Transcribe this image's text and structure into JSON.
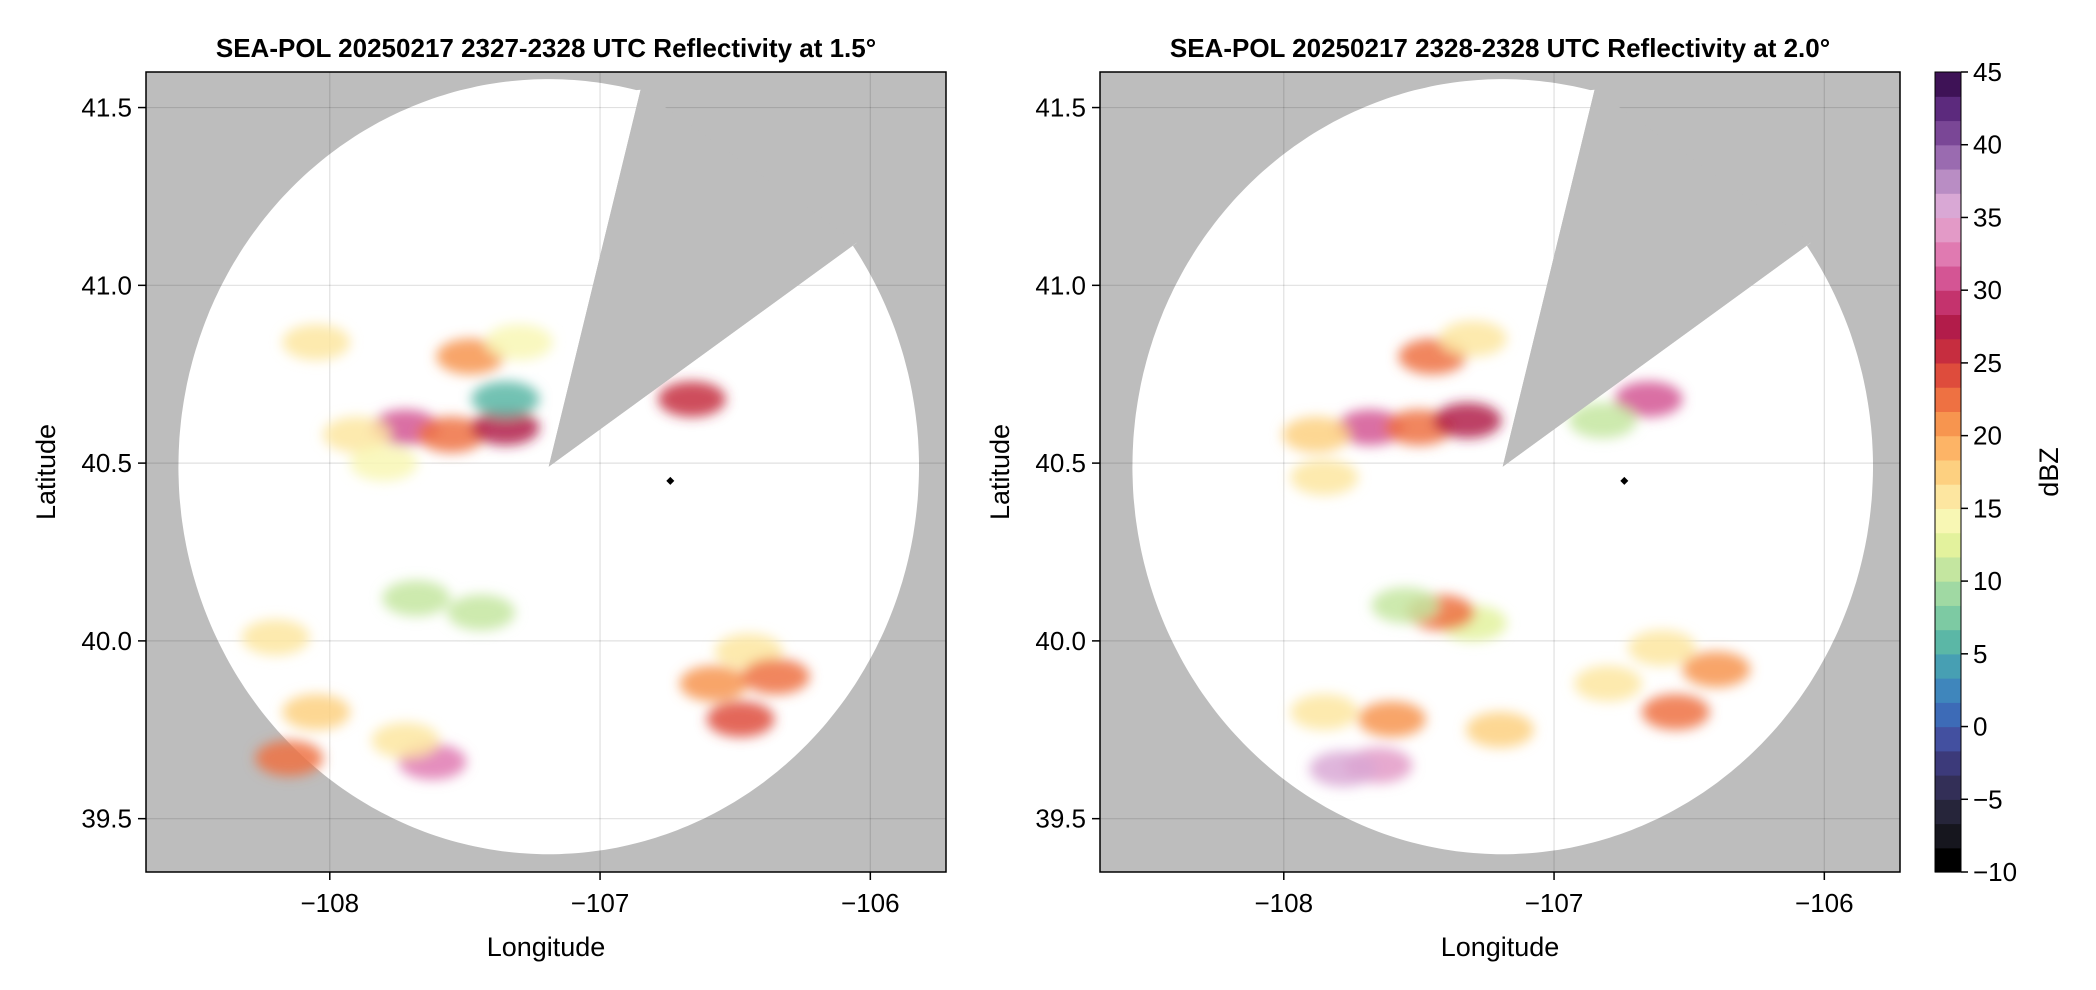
{
  "chart_data": [
    {
      "type": "heatmap",
      "title": "SEA-POL 20250217 2327-2328 UTC Reflectivity at 1.5°",
      "xlabel": "Longitude",
      "ylabel": "Latitude",
      "xlim": [
        -108.68,
        -105.72
      ],
      "ylim": [
        39.35,
        41.6
      ],
      "xticks": [
        -108,
        -107,
        -106
      ],
      "xtick_labels": [
        "−108",
        "−107",
        "−106"
      ],
      "yticks": [
        39.5,
        40.0,
        40.5,
        41.0,
        41.5
      ],
      "ytick_labels": [
        "39.5",
        "40.0",
        "40.5",
        "41.0",
        "41.5"
      ],
      "grid": true,
      "background": "#bdbdbd",
      "radar_site": {
        "lon": -107.19,
        "lat": 40.49
      },
      "marker": {
        "lon": -106.74,
        "lat": 40.45
      },
      "coverage_corners": [
        [
          -105.82,
          40.47
        ],
        [
          -107.19,
          39.38
        ],
        [
          -108.56,
          40.47
        ],
        [
          -107.19,
          41.56
        ],
        [
          -106.85,
          41.55
        ],
        [
          -106.05,
          41.12
        ]
      ],
      "blocked_sector": {
        "from_lon_lat": [
          -106.85,
          41.55
        ],
        "to_lon_lat": [
          -106.05,
          41.12
        ]
      },
      "echoes": [
        {
          "lon": -107.72,
          "lat": 40.6,
          "dbz": 30
        },
        {
          "lon": -107.9,
          "lat": 40.58,
          "dbz": 16
        },
        {
          "lon": -107.55,
          "lat": 40.58,
          "dbz": 22
        },
        {
          "lon": -107.35,
          "lat": 40.6,
          "dbz": 27
        },
        {
          "lon": -107.48,
          "lat": 40.8,
          "dbz": 20
        },
        {
          "lon": -107.3,
          "lat": 40.84,
          "dbz": 14
        },
        {
          "lon": -107.35,
          "lat": 40.68,
          "dbz": 6
        },
        {
          "lon": -106.66,
          "lat": 40.68,
          "dbz": 25
        },
        {
          "lon": -107.8,
          "lat": 40.5,
          "dbz": 14
        },
        {
          "lon": -108.05,
          "lat": 40.84,
          "dbz": 15
        },
        {
          "lon": -106.45,
          "lat": 39.97,
          "dbz": 15
        },
        {
          "lon": -106.58,
          "lat": 39.88,
          "dbz": 20
        },
        {
          "lon": -106.35,
          "lat": 39.9,
          "dbz": 22
        },
        {
          "lon": -106.48,
          "lat": 39.78,
          "dbz": 24
        },
        {
          "lon": -107.68,
          "lat": 40.12,
          "dbz": 10
        },
        {
          "lon": -107.44,
          "lat": 40.08,
          "dbz": 11
        },
        {
          "lon": -108.2,
          "lat": 40.01,
          "dbz": 16
        },
        {
          "lon": -108.05,
          "lat": 39.8,
          "dbz": 17
        },
        {
          "lon": -107.62,
          "lat": 39.66,
          "dbz": 32
        },
        {
          "lon": -107.72,
          "lat": 39.72,
          "dbz": 16
        },
        {
          "lon": -108.15,
          "lat": 39.67,
          "dbz": 22
        }
      ]
    },
    {
      "type": "heatmap",
      "title": "SEA-POL 20250217 2328-2328 UTC Reflectivity at 2.0°",
      "xlabel": "Longitude",
      "ylabel": "Latitude",
      "xlim": [
        -108.68,
        -105.72
      ],
      "ylim": [
        39.35,
        41.6
      ],
      "xticks": [
        -108,
        -107,
        -106
      ],
      "xtick_labels": [
        "−108",
        "−107",
        "−106"
      ],
      "yticks": [
        39.5,
        40.0,
        40.5,
        41.0,
        41.5
      ],
      "ytick_labels": [
        "39.5",
        "40.0",
        "40.5",
        "41.0",
        "41.5"
      ],
      "grid": true,
      "background": "#bdbdbd",
      "radar_site": {
        "lon": -107.19,
        "lat": 40.49
      },
      "marker": {
        "lon": -106.74,
        "lat": 40.45
      },
      "coverage_corners": [
        [
          -105.82,
          40.47
        ],
        [
          -107.19,
          39.38
        ],
        [
          -108.56,
          40.47
        ],
        [
          -107.19,
          41.56
        ],
        [
          -106.85,
          41.55
        ],
        [
          -106.05,
          41.12
        ]
      ],
      "blocked_sector": {
        "from_lon_lat": [
          -106.85,
          41.55
        ],
        "to_lon_lat": [
          -106.05,
          41.12
        ]
      },
      "echoes": [
        {
          "lon": -107.68,
          "lat": 40.6,
          "dbz": 30
        },
        {
          "lon": -107.88,
          "lat": 40.58,
          "dbz": 17
        },
        {
          "lon": -107.5,
          "lat": 40.6,
          "dbz": 22
        },
        {
          "lon": -107.32,
          "lat": 40.62,
          "dbz": 27
        },
        {
          "lon": -107.45,
          "lat": 40.8,
          "dbz": 22
        },
        {
          "lon": -107.3,
          "lat": 40.85,
          "dbz": 15
        },
        {
          "lon": -106.65,
          "lat": 40.68,
          "dbz": 30
        },
        {
          "lon": -106.82,
          "lat": 40.62,
          "dbz": 10
        },
        {
          "lon": -107.85,
          "lat": 40.46,
          "dbz": 15
        },
        {
          "lon": -106.6,
          "lat": 39.98,
          "dbz": 16
        },
        {
          "lon": -106.4,
          "lat": 39.92,
          "dbz": 20
        },
        {
          "lon": -106.55,
          "lat": 39.8,
          "dbz": 22
        },
        {
          "lon": -106.8,
          "lat": 39.88,
          "dbz": 16
        },
        {
          "lon": -107.3,
          "lat": 40.05,
          "dbz": 12
        },
        {
          "lon": -107.42,
          "lat": 40.08,
          "dbz": 22
        },
        {
          "lon": -107.55,
          "lat": 40.1,
          "dbz": 11
        },
        {
          "lon": -107.6,
          "lat": 39.78,
          "dbz": 21
        },
        {
          "lon": -107.85,
          "lat": 39.8,
          "dbz": 16
        },
        {
          "lon": -107.2,
          "lat": 39.75,
          "dbz": 18
        },
        {
          "lon": -107.65,
          "lat": 39.65,
          "dbz": 34
        },
        {
          "lon": -107.78,
          "lat": 39.64,
          "dbz": 36
        }
      ]
    }
  ],
  "colorbar": {
    "label": "dBZ",
    "min": -10,
    "max": 45,
    "ticks": [
      45,
      40,
      35,
      30,
      25,
      20,
      15,
      10,
      5,
      0,
      -5,
      -10
    ],
    "tick_labels": [
      "45",
      "40",
      "35",
      "30",
      "25",
      "20",
      "15",
      "10",
      "5",
      "0",
      "−5",
      "−10"
    ],
    "colors": [
      "#000000",
      "#16161e",
      "#26253a",
      "#332f57",
      "#3c3a7a",
      "#4350a0",
      "#3d6bb7",
      "#3f86bc",
      "#479fb3",
      "#5bb7a6",
      "#7dcaa3",
      "#a0d9a3",
      "#c4e6a0",
      "#e3f29d",
      "#f8f7b4",
      "#fde6a0",
      "#fdd080",
      "#fdb466",
      "#f7954f",
      "#ee7142",
      "#de4c3c",
      "#c62d3f",
      "#b21c4a",
      "#c4336d",
      "#d45594",
      "#e07ab1",
      "#e39ac7",
      "#d9a8d5",
      "#b98dc4",
      "#9a6bb0",
      "#7a4796",
      "#5c2a7d",
      "#3e1256"
    ]
  }
}
